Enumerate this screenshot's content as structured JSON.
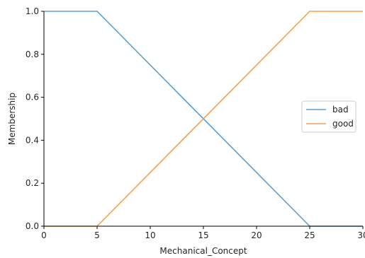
{
  "chart_data": {
    "type": "line",
    "title": "",
    "xlabel": "Mechanical_Concept",
    "ylabel": "Membership",
    "xlim": [
      0,
      30
    ],
    "ylim": [
      0,
      1
    ],
    "x_ticks": [
      0,
      5,
      10,
      15,
      20,
      25,
      30
    ],
    "y_ticks": [
      0.0,
      0.2,
      0.4,
      0.6,
      0.8,
      1.0
    ],
    "x_tick_labels": [
      "0",
      "5",
      "10",
      "15",
      "20",
      "25",
      "30"
    ],
    "y_tick_labels": [
      "0.0",
      "0.2",
      "0.4",
      "0.6",
      "0.8",
      "1.0"
    ],
    "grid": false,
    "legend_position": "right",
    "series": [
      {
        "name": "bad",
        "color": "#5a9fd4",
        "x": [
          0,
          5,
          25,
          30
        ],
        "y": [
          1.0,
          1.0,
          0.0,
          0.0
        ]
      },
      {
        "name": "good",
        "color": "#f5a04a",
        "x": [
          0,
          5,
          25,
          30
        ],
        "y": [
          0.0,
          0.0,
          1.0,
          1.0
        ]
      }
    ]
  }
}
